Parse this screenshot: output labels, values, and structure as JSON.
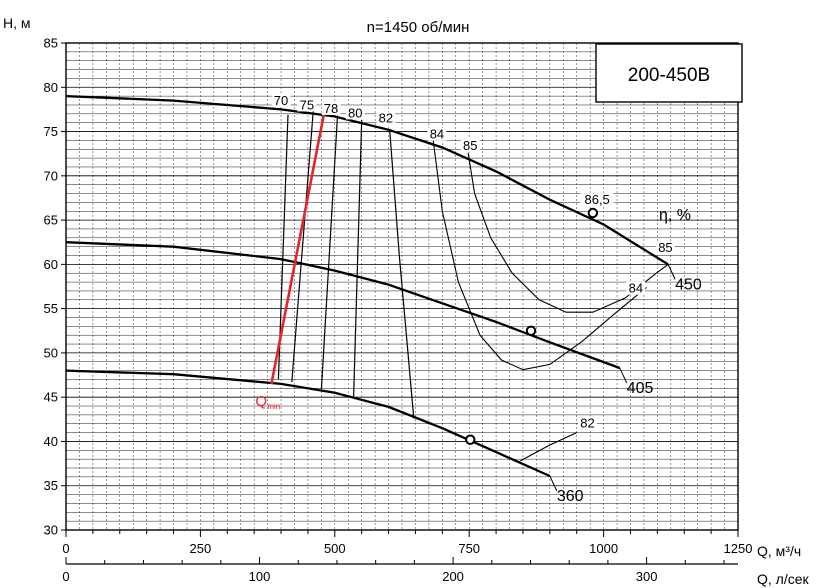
{
  "chart_data": {
    "type": "line",
    "title": "n=1450 об/мин",
    "model": "200-450B",
    "xlabel": "Q, м³/ч",
    "xlabel2": "Q, л/сек",
    "ylabel": "H, м",
    "xlim": [
      0,
      1250
    ],
    "ylim": [
      30,
      85
    ],
    "xticks": [
      0,
      250,
      500,
      750,
      1000,
      1250
    ],
    "xticks2": [
      0,
      100,
      200,
      300
    ],
    "yticks": [
      30,
      35,
      40,
      45,
      50,
      55,
      60,
      65,
      70,
      75,
      80,
      85
    ],
    "grid": true,
    "series": [
      {
        "name": "450",
        "x": [
          0,
          200,
          400,
          500,
          600,
          700,
          800,
          900,
          1000,
          1120
        ],
        "y": [
          79,
          78.5,
          77.5,
          76.7,
          75.2,
          73.2,
          70.5,
          67.3,
          64.5,
          60
        ]
      },
      {
        "name": "405",
        "x": [
          0,
          200,
          400,
          500,
          600,
          700,
          800,
          900,
          1030
        ],
        "y": [
          62.5,
          62,
          60.6,
          59.3,
          57.7,
          55.6,
          53.5,
          51.2,
          48.3
        ]
      },
      {
        "name": "360",
        "x": [
          0,
          200,
          400,
          500,
          600,
          700,
          800,
          900
        ],
        "y": [
          48,
          47.6,
          46.5,
          45.5,
          43.9,
          41.5,
          38.8,
          36.1
        ]
      }
    ],
    "duty_points": [
      {
        "x": 980,
        "y": 65.8
      },
      {
        "x": 865,
        "y": 52.5
      },
      {
        "x": 752,
        "y": 40.2
      }
    ],
    "efficiency_label": "η, %",
    "efficiency_lines": [
      {
        "label": "70",
        "points": [
          [
            395,
            47
          ],
          [
            413,
            76.9
          ]
        ]
      },
      {
        "label": "75",
        "points": [
          [
            420,
            46.7
          ],
          [
            460,
            77.4
          ]
        ]
      },
      {
        "label": "78",
        "points": [
          [
            475,
            45.9
          ],
          [
            505,
            76.8
          ]
        ]
      },
      {
        "label": "80",
        "points": [
          [
            535,
            45
          ],
          [
            550,
            76.3
          ]
        ]
      },
      {
        "label": "82",
        "points": [
          [
            647,
            42.6
          ],
          [
            620,
            61
          ],
          [
            602,
            75.3
          ]
        ]
      }
    ],
    "efficiency_contours": [
      {
        "label": "84",
        "points": [
          [
            683,
            74
          ],
          [
            700,
            66
          ],
          [
            730,
            58
          ],
          [
            770,
            52
          ],
          [
            810,
            49.2
          ],
          [
            850,
            48.1
          ],
          [
            900,
            48.7
          ],
          [
            960,
            51.3
          ],
          [
            1020,
            54.4
          ],
          [
            1080,
            57.4
          ]
        ]
      },
      {
        "label": "85",
        "points": [
          [
            748,
            72.6
          ],
          [
            760,
            68
          ],
          [
            790,
            63
          ],
          [
            830,
            59
          ],
          [
            880,
            56
          ],
          [
            930,
            54.6
          ],
          [
            980,
            54.6
          ],
          [
            1040,
            56.2
          ],
          [
            1100,
            59.1
          ],
          [
            1120,
            60
          ]
        ]
      },
      {
        "label": "82",
        "points": [
          [
            845,
            37.8
          ],
          [
            900,
            39.6
          ],
          [
            950,
            41
          ]
        ]
      }
    ],
    "labels_on_chart": [
      {
        "text": "70",
        "x": 400,
        "y": 78
      },
      {
        "text": "75",
        "x": 448,
        "y": 77.5
      },
      {
        "text": "78",
        "x": 493,
        "y": 77.1
      },
      {
        "text": "80",
        "x": 538,
        "y": 76.6
      },
      {
        "text": "82",
        "x": 595,
        "y": 76
      },
      {
        "text": "84",
        "x": 690,
        "y": 74.2
      },
      {
        "text": "85",
        "x": 752,
        "y": 72.9
      },
      {
        "text": "86,5",
        "x": 988,
        "y": 66.8
      },
      {
        "text": "85",
        "x": 1115,
        "y": 61.4
      },
      {
        "text": "84",
        "x": 1060,
        "y": 56.8
      },
      {
        "text": "82",
        "x": 970,
        "y": 41.6
      }
    ],
    "q_min": {
      "label": "Q",
      "label_sub": "min",
      "points": [
        [
          382,
          46.5
        ],
        [
          480,
          77
        ]
      ]
    }
  }
}
